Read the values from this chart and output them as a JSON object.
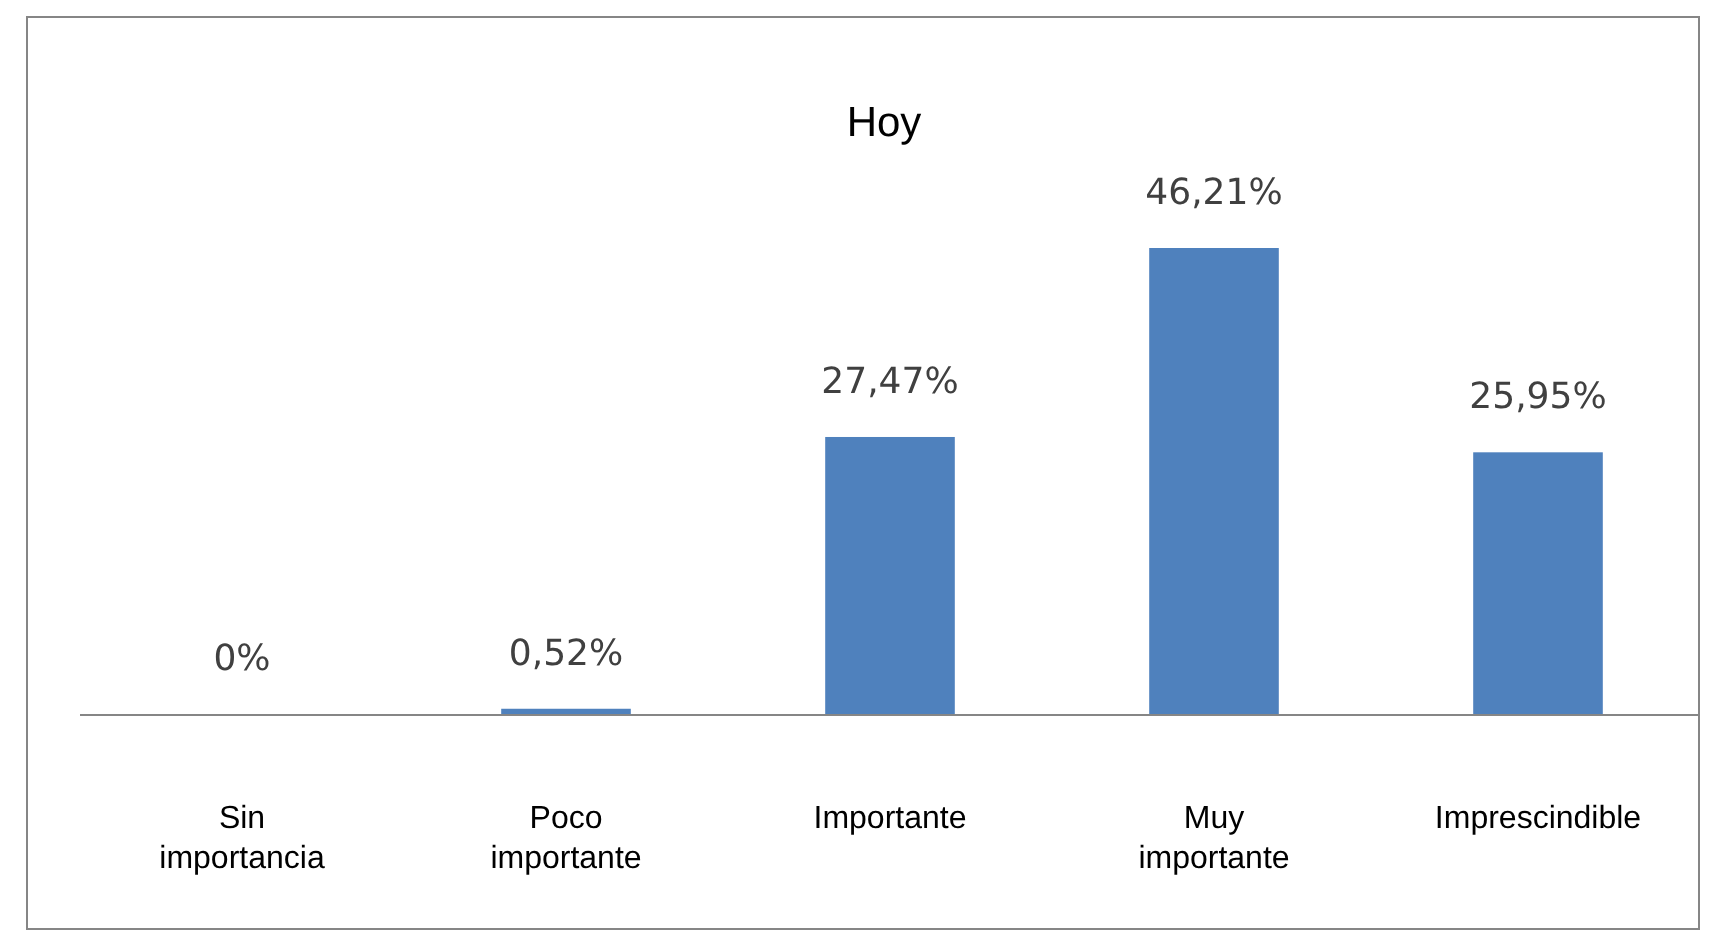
{
  "chart_data": {
    "type": "bar",
    "title": "Hoy",
    "categories": [
      "Sin importancia",
      "Poco importante",
      "Importante",
      "Muy importante",
      "Imprescindible"
    ],
    "values": [
      0,
      0.52,
      27.47,
      46.21,
      25.95
    ],
    "value_labels": [
      "0%",
      "0,52%",
      "27,47%",
      "46,21%",
      "25,95%"
    ],
    "color": "#4f81bd"
  }
}
